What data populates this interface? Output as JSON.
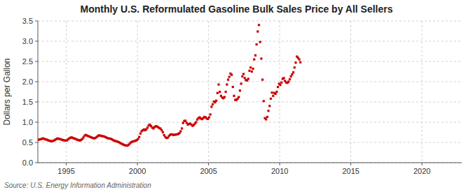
{
  "chart_data": {
    "type": "scatter",
    "title": "Monthly U.S. Reformulated Gasoline Bulk Sales Price by All Sellers",
    "y_label": "Dollars per Gallon",
    "source": "Source: U.S. Energy Information Administration",
    "color": "#cc0000",
    "marker": "square",
    "grid": true,
    "xlim": [
      1993.0,
      2022.8
    ],
    "xticks": [
      1995,
      2000,
      2005,
      2010,
      2015,
      2020
    ],
    "ylim": [
      0.0,
      3.5
    ],
    "yticks": [
      {
        "value": 0.0,
        "label": "0.0"
      },
      0.5,
      {
        "value": 1.0,
        "label": "1.0"
      },
      1.5,
      {
        "value": 2.0,
        "label": "2.0"
      },
      2.5,
      {
        "value": 3.0,
        "label": "3.0"
      },
      3.5
    ],
    "x": [
      1993.0416666666667,
      1993.125,
      1993.2083333333333,
      1993.2916666666667,
      1993.375,
      1993.4583333333333,
      1993.5416666666667,
      1993.625,
      1993.7083333333333,
      1993.7916666666667,
      1993.875,
      1993.9583333333333,
      1994.0416666666667,
      1994.125,
      1994.2083333333333,
      1994.2916666666667,
      1994.375,
      1994.4583333333333,
      1994.5416666666667,
      1994.625,
      1994.7083333333333,
      1994.7916666666667,
      1994.875,
      1994.9583333333333,
      1995.0416666666667,
      1995.125,
      1995.2083333333333,
      1995.2916666666667,
      1995.375,
      1995.4583333333333,
      1995.5416666666667,
      1995.625,
      1995.7083333333333,
      1995.7916666666667,
      1995.875,
      1995.9583333333333,
      1996.0416666666667,
      1996.125,
      1996.2083333333333,
      1996.2916666666667,
      1996.375,
      1996.4583333333333,
      1996.5416666666667,
      1996.625,
      1996.7083333333333,
      1996.7916666666667,
      1996.875,
      1996.9583333333333,
      1997.0416666666667,
      1997.125,
      1997.2083333333333,
      1997.2916666666667,
      1997.375,
      1997.4583333333333,
      1997.5416666666667,
      1997.625,
      1997.7083333333333,
      1997.7916666666667,
      1997.875,
      1997.9583333333333,
      1998.0416666666667,
      1998.125,
      1998.2083333333333,
      1998.2916666666667,
      1998.375,
      1998.4583333333333,
      1998.5416666666667,
      1998.625,
      1998.7083333333333,
      1998.7916666666667,
      1998.875,
      1998.9583333333333,
      1999.0416666666667,
      1999.125,
      1999.2083333333333,
      1999.2916666666667,
      1999.375,
      1999.4583333333333,
      1999.5416666666667,
      1999.625,
      1999.7083333333333,
      1999.7916666666667,
      1999.875,
      1999.9583333333333,
      2000.0416666666667,
      2000.125,
      2000.2083333333333,
      2000.2916666666667,
      2000.375,
      2000.4583333333333,
      2000.5416666666667,
      2000.625,
      2000.7083333333333,
      2000.7916666666667,
      2000.875,
      2000.9583333333333,
      2001.0416666666667,
      2001.125,
      2001.2083333333333,
      2001.2916666666667,
      2001.375,
      2001.4583333333333,
      2001.5416666666667,
      2001.625,
      2001.7083333333333,
      2001.7916666666667,
      2001.875,
      2001.9583333333333,
      2002.0416666666667,
      2002.125,
      2002.2083333333333,
      2002.2916666666667,
      2002.375,
      2002.4583333333333,
      2002.5416666666667,
      2002.625,
      2002.7083333333333,
      2002.7916666666667,
      2002.875,
      2002.9583333333333,
      2003.0416666666667,
      2003.125,
      2003.2083333333333,
      2003.2916666666667,
      2003.375,
      2003.4583333333333,
      2003.5416666666667,
      2003.625,
      2003.7083333333333,
      2003.7916666666667,
      2003.875,
      2003.9583333333333,
      2004.0416666666667,
      2004.125,
      2004.2083333333333,
      2004.2916666666667,
      2004.375,
      2004.4583333333333,
      2004.5416666666667,
      2004.625,
      2004.7083333333333,
      2004.7916666666667,
      2004.875,
      2004.9583333333333,
      2005.0416666666667,
      2005.125,
      2005.2083333333333,
      2005.2916666666667,
      2005.375,
      2005.4583333333333,
      2005.5416666666667,
      2005.625,
      2005.7083333333333,
      2005.7916666666667,
      2005.875,
      2005.9583333333333,
      2006.0416666666667,
      2006.125,
      2006.2083333333333,
      2006.2916666666667,
      2006.375,
      2006.4583333333333,
      2006.5416666666667,
      2006.625,
      2006.7083333333333,
      2006.7916666666667,
      2006.875,
      2006.9583333333333,
      2007.0416666666667,
      2007.125,
      2007.2083333333333,
      2007.2916666666667,
      2007.375,
      2007.4583333333333,
      2007.5416666666667,
      2007.625,
      2007.7083333333333,
      2007.7916666666667,
      2007.875,
      2007.9583333333333,
      2008.0416666666667,
      2008.125,
      2008.2083333333333,
      2008.2916666666667,
      2008.375,
      2008.4583333333333,
      2008.5416666666667,
      2008.625,
      2008.7083333333333,
      2008.7916666666667,
      2008.875,
      2008.9583333333333,
      2009.0416666666667,
      2009.125,
      2009.2083333333333,
      2009.2916666666667,
      2009.375,
      2009.4583333333333,
      2009.5416666666667,
      2009.625,
      2009.7083333333333,
      2009.7916666666667,
      2009.875,
      2009.9583333333333,
      2010.0416666666667,
      2010.125,
      2010.2083333333333,
      2010.2916666666667,
      2010.375,
      2010.4583333333333,
      2010.5416666666667,
      2010.625,
      2010.7083333333333,
      2010.7916666666667,
      2010.875,
      2010.9583333333333,
      2011.0416666666667,
      2011.125,
      2011.2083333333333,
      2011.2916666666667,
      2011.375,
      2011.4583333333333
    ],
    "values": [
      0.565,
      0.575,
      0.58,
      0.59,
      0.6,
      0.585,
      0.575,
      0.57,
      0.555,
      0.545,
      0.535,
      0.53,
      0.535,
      0.545,
      0.565,
      0.58,
      0.6,
      0.59,
      0.585,
      0.575,
      0.565,
      0.555,
      0.55,
      0.545,
      0.55,
      0.575,
      0.6,
      0.615,
      0.625,
      0.61,
      0.6,
      0.59,
      0.575,
      0.565,
      0.555,
      0.545,
      0.565,
      0.585,
      0.625,
      0.67,
      0.685,
      0.67,
      0.655,
      0.645,
      0.63,
      0.62,
      0.61,
      0.6,
      0.61,
      0.63,
      0.655,
      0.675,
      0.67,
      0.66,
      0.655,
      0.65,
      0.64,
      0.625,
      0.61,
      0.6,
      0.595,
      0.59,
      0.575,
      0.555,
      0.545,
      0.535,
      0.525,
      0.515,
      0.505,
      0.485,
      0.47,
      0.455,
      0.44,
      0.43,
      0.425,
      0.42,
      0.44,
      0.47,
      0.5,
      0.515,
      0.525,
      0.535,
      0.545,
      0.555,
      0.585,
      0.635,
      0.72,
      0.775,
      0.8,
      0.82,
      0.8,
      0.825,
      0.865,
      0.92,
      0.94,
      0.905,
      0.865,
      0.845,
      0.88,
      0.9,
      0.895,
      0.875,
      0.855,
      0.84,
      0.8,
      0.75,
      0.68,
      0.635,
      0.61,
      0.615,
      0.655,
      0.685,
      0.7,
      0.695,
      0.685,
      0.69,
      0.695,
      0.7,
      0.71,
      0.73,
      0.775,
      0.845,
      0.98,
      1.03,
      1.035,
      0.985,
      0.94,
      0.955,
      0.965,
      0.94,
      0.91,
      0.93,
      0.965,
      1.0,
      1.065,
      1.1,
      1.12,
      1.09,
      1.075,
      1.1,
      1.13,
      1.12,
      1.09,
      1.08,
      1.12,
      1.19,
      1.38,
      1.44,
      1.51,
      1.49,
      1.53,
      1.72,
      1.93,
      1.75,
      1.65,
      1.61,
      1.59,
      1.62,
      1.75,
      1.93,
      2.05,
      2.12,
      2.2,
      2.17,
      1.87,
      1.65,
      1.55,
      1.55,
      1.58,
      1.62,
      1.78,
      1.95,
      2.13,
      2.19,
      2.09,
      2.04,
      2.03,
      2.07,
      2.27,
      2.35,
      2.25,
      2.32,
      2.55,
      2.65,
      2.92,
      3.24,
      3.4,
      2.98,
      2.57,
      2.05,
      1.52,
      1.1,
      1.07,
      1.13,
      1.28,
      1.4,
      1.58,
      1.73,
      1.65,
      1.72,
      1.7,
      1.75,
      1.87,
      1.95,
      1.92,
      1.98,
      2.07,
      2.09,
      2.02,
      1.98,
      1.97,
      2.0,
      2.06,
      2.13,
      2.18,
      2.23,
      2.35,
      2.47,
      2.62,
      2.59,
      2.55,
      2.48
    ]
  }
}
